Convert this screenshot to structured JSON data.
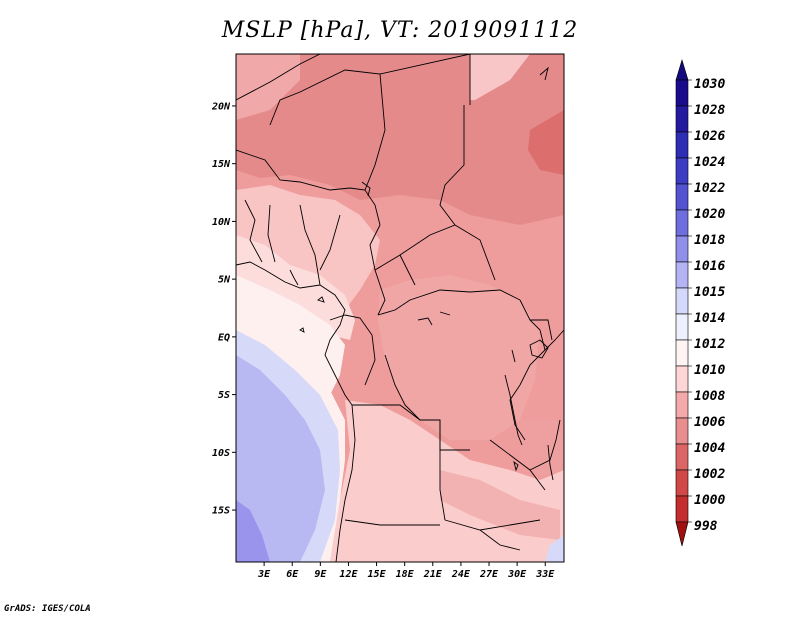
{
  "title": "MSLP [hPa], VT: 2019091112",
  "credit": "GrADS: IGES/COLA",
  "map": {
    "lon_range": [
      0,
      35
    ],
    "lat_range": [
      -19.5,
      24.5
    ],
    "lat_ticks": [
      {
        "value": 20,
        "label": "20N"
      },
      {
        "value": 15,
        "label": "15N"
      },
      {
        "value": 10,
        "label": "10N"
      },
      {
        "value": 5,
        "label": "5N"
      },
      {
        "value": 0,
        "label": "EQ"
      },
      {
        "value": -5,
        "label": "5S"
      },
      {
        "value": -10,
        "label": "10S"
      },
      {
        "value": -15,
        "label": "15S"
      }
    ],
    "lon_ticks": [
      {
        "value": 3,
        "label": "3E"
      },
      {
        "value": 6,
        "label": "6E"
      },
      {
        "value": 9,
        "label": "9E"
      },
      {
        "value": 12,
        "label": "12E"
      },
      {
        "value": 15,
        "label": "15E"
      },
      {
        "value": 18,
        "label": "18E"
      },
      {
        "value": 21,
        "label": "21E"
      },
      {
        "value": 24,
        "label": "24E"
      },
      {
        "value": 27,
        "label": "27E"
      },
      {
        "value": 30,
        "label": "30E"
      },
      {
        "value": 33,
        "label": "33E"
      }
    ]
  },
  "colorbar": {
    "levels": [
      {
        "label": "1030",
        "color": "#1a0a8c"
      },
      {
        "label": "1028",
        "color": "#231aa0"
      },
      {
        "label": "1026",
        "color": "#2e2eb4"
      },
      {
        "label": "1024",
        "color": "#3c3cc4"
      },
      {
        "label": "1022",
        "color": "#5454d2"
      },
      {
        "label": "1020",
        "color": "#6e6ede"
      },
      {
        "label": "1018",
        "color": "#9090ea"
      },
      {
        "label": "1016",
        "color": "#b4b4f4"
      },
      {
        "label": "1015",
        "color": "#d4d8fa"
      },
      {
        "label": "1014",
        "color": "#eef0ff"
      },
      {
        "label": "1012",
        "color": "#fff4f4"
      },
      {
        "label": "1010",
        "color": "#ffd6d6"
      },
      {
        "label": "1008",
        "color": "#f4aaaa"
      },
      {
        "label": "1006",
        "color": "#e88e8e"
      },
      {
        "label": "1004",
        "color": "#dc6666"
      },
      {
        "label": "1002",
        "color": "#d24848"
      },
      {
        "label": "1000",
        "color": "#c42e2e"
      },
      {
        "label": "998",
        "color": "#b01818"
      }
    ],
    "top_color": "#140a80",
    "bottom_color": "#a01010"
  }
}
